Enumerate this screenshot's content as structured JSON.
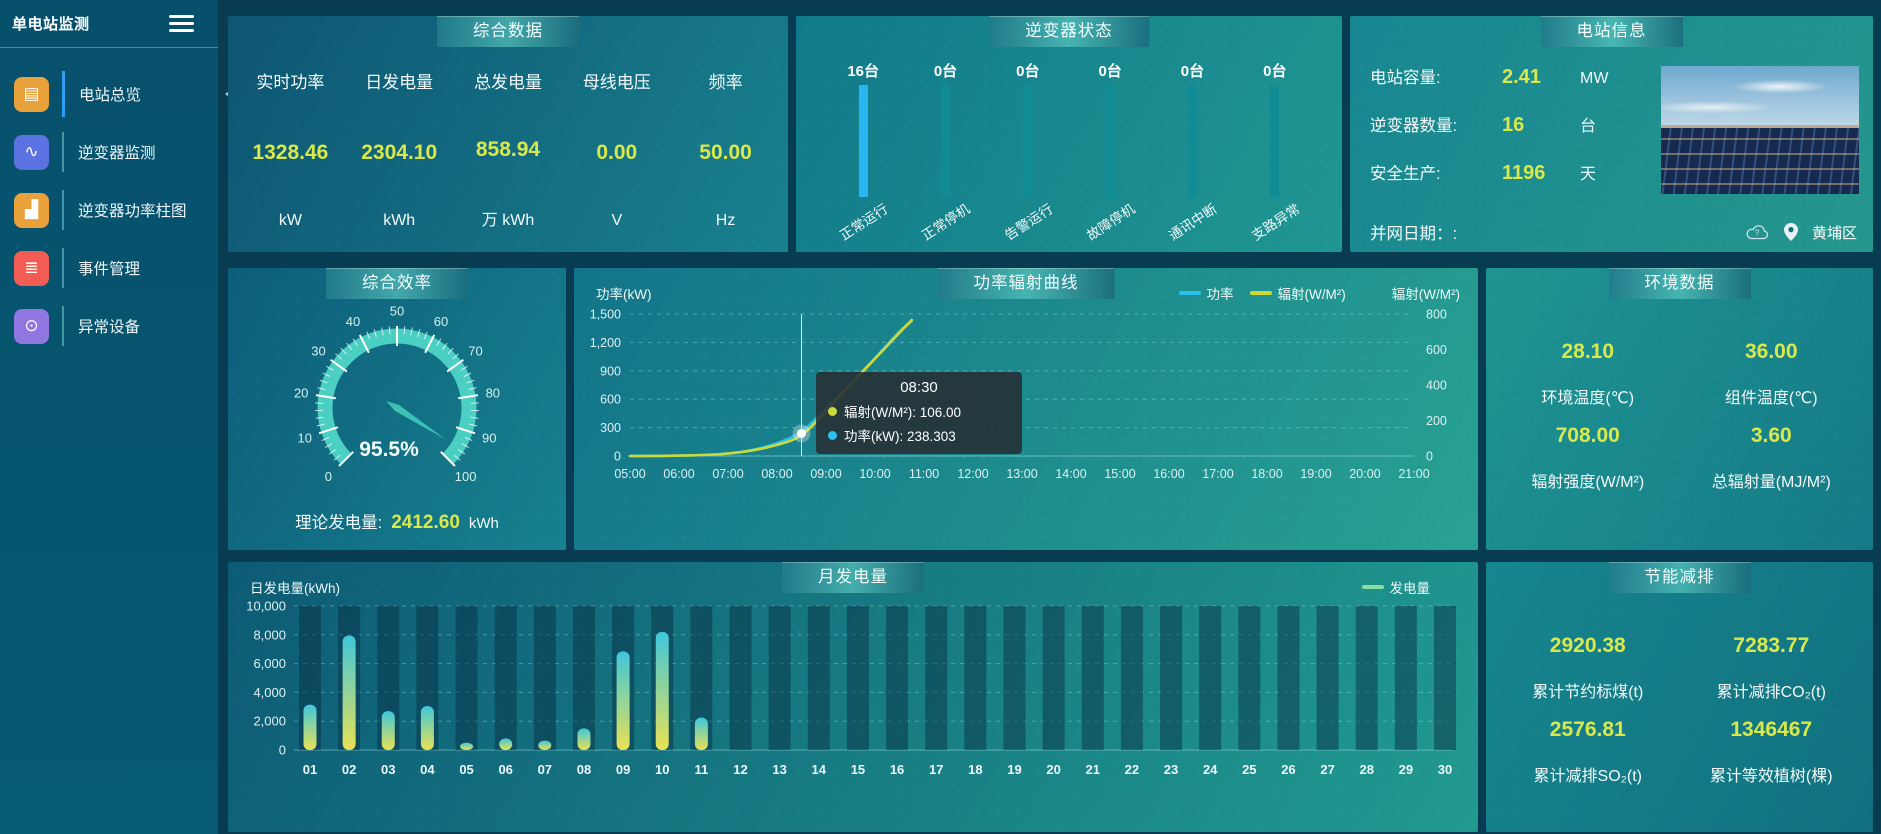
{
  "app": {
    "title": "单电站监测"
  },
  "sidebar": {
    "items": [
      {
        "label": "电站总览",
        "glyph": "▤",
        "color": "#e9a23b",
        "active": true
      },
      {
        "label": "逆变器监测",
        "glyph": "∿",
        "color": "#5a73e0",
        "active": false
      },
      {
        "label": "逆变器功率柱图",
        "glyph": "▟",
        "color": "#e9a23b",
        "active": false
      },
      {
        "label": "事件管理",
        "glyph": "≣",
        "color": "#f25c54",
        "active": false
      },
      {
        "label": "异常设备",
        "glyph": "⊙",
        "color": "#8f76e0",
        "active": false
      }
    ]
  },
  "panels": {
    "summary": {
      "title": "综合数据",
      "metrics": [
        {
          "label": "实时功率",
          "value": "1328.46",
          "unit": "kW"
        },
        {
          "label": "日发电量",
          "value": "2304.10",
          "unit": "kWh"
        },
        {
          "label": "总发电量",
          "value": "858.94",
          "unit": "万 kWh"
        },
        {
          "label": "母线电压",
          "value": "0.00",
          "unit": "V"
        },
        {
          "label": "频率",
          "value": "50.00",
          "unit": "Hz"
        }
      ]
    },
    "inverter_status": {
      "title": "逆变器状态",
      "bars": [
        {
          "count": "16台",
          "label": "正常运行",
          "color": "#2ab5f2"
        },
        {
          "count": "0台",
          "label": "正常停机",
          "color": "#0f8c94"
        },
        {
          "count": "0台",
          "label": "告警运行",
          "color": "#0f8c94"
        },
        {
          "count": "0台",
          "label": "故障停机",
          "color": "#0f8c94"
        },
        {
          "count": "0台",
          "label": "通讯中断",
          "color": "#0f8c94"
        },
        {
          "count": "0台",
          "label": "支路异常",
          "color": "#0f8c94"
        }
      ]
    },
    "station_info": {
      "title": "电站信息",
      "rows": [
        {
          "label": "电站容量:",
          "value": "2.41",
          "unit": "MW"
        },
        {
          "label": "逆变器数量:",
          "value": "16",
          "unit": "台"
        },
        {
          "label": "安全生产:",
          "value": "1196",
          "unit": "天"
        }
      ],
      "grid_date_label": "并网日期：:",
      "location": "黄埔区"
    },
    "efficiency": {
      "title": "综合效率",
      "theory_label": "理论发电量:",
      "theory_value": "2412.60",
      "theory_unit": "kWh"
    },
    "power_curve": {
      "title": "功率辐射曲线"
    },
    "environment": {
      "title": "环境数据",
      "stats": [
        {
          "value": "28.10",
          "label": "环境温度(℃)"
        },
        {
          "value": "36.00",
          "label": "组件温度(℃)"
        },
        {
          "value": "708.00",
          "label": "辐射强度(W/M²)"
        },
        {
          "value": "3.60",
          "label": "总辐射量(MJ/M²)"
        }
      ]
    },
    "monthly": {
      "title": "月发电量"
    },
    "saving": {
      "title": "节能减排",
      "stats": [
        {
          "value": "2920.38",
          "label": "累计节约标煤(t)"
        },
        {
          "value": "7283.77",
          "label": "累计减排CO₂(t)"
        },
        {
          "value": "2576.81",
          "label": "累计减排SO₂(t)"
        },
        {
          "value": "1346467",
          "label": "累计等效植树(棵)"
        }
      ]
    }
  },
  "chart_data": [
    {
      "id": "power_curve",
      "type": "line",
      "title": "功率辐射曲线",
      "x_range": [
        5,
        21
      ],
      "x_tick_labels": [
        "05:00",
        "06:00",
        "07:00",
        "08:00",
        "09:00",
        "10:00",
        "11:00",
        "12:00",
        "13:00",
        "14:00",
        "15:00",
        "16:00",
        "17:00",
        "18:00",
        "19:00",
        "20:00",
        "21:00"
      ],
      "x_hours": [
        5,
        5.5,
        6,
        6.5,
        7,
        7.5,
        8,
        8.5,
        9,
        9.5,
        10,
        10.5,
        10.75
      ],
      "series": [
        {
          "name": "功率",
          "axis": "left",
          "color": "#29c2ee",
          "values": [
            0,
            1,
            3,
            8,
            25,
            60,
            130,
            238.303,
            500,
            760,
            1030,
            1320,
            1425
          ]
        },
        {
          "name": "辐射(W/M²)",
          "axis": "right",
          "color": "#cdd938",
          "values": [
            0,
            0,
            2,
            5,
            12,
            30,
            60,
            106,
            250,
            405,
            548,
            695,
            766
          ]
        }
      ],
      "left_axis": {
        "name": "功率(kW)",
        "max": 1500,
        "ticks": [
          "0",
          "300",
          "600",
          "900",
          "1,200",
          "1,500"
        ]
      },
      "right_axis": {
        "name": "辐射(W/M²)",
        "max": 800,
        "ticks": [
          "0",
          "200",
          "400",
          "600",
          "800"
        ]
      },
      "crosshair": {
        "x": 8.5,
        "value": 238.303
      },
      "tooltip": {
        "time": "08:30",
        "rows": [
          {
            "color": "#cdd938",
            "text": "辐射(W/M²): 106.00"
          },
          {
            "color": "#29c2ee",
            "text": "功率(kW): 238.303"
          }
        ]
      },
      "legend_position": "top-right",
      "grid": true
    },
    {
      "id": "monthly_generation",
      "type": "bar",
      "title": "月发电量",
      "ylabel": "日发电量(kWh)",
      "legend": "发电量",
      "legend_color": "#8ade9e",
      "categories": [
        "01",
        "02",
        "03",
        "04",
        "05",
        "06",
        "07",
        "08",
        "09",
        "10",
        "11",
        "12",
        "13",
        "14",
        "15",
        "16",
        "17",
        "18",
        "19",
        "20",
        "21",
        "22",
        "23",
        "24",
        "25",
        "26",
        "27",
        "28",
        "29",
        "30"
      ],
      "values": [
        3150,
        7950,
        2700,
        3050,
        500,
        800,
        650,
        1500,
        6850,
        8200,
        2250,
        0,
        0,
        0,
        0,
        0,
        0,
        0,
        0,
        0,
        0,
        0,
        0,
        0,
        0,
        0,
        0,
        0,
        0,
        0
      ],
      "ymax": 10000,
      "y_ticks": [
        "0",
        "2,000",
        "4,000",
        "6,000",
        "8,000",
        "10,000"
      ],
      "bar_gradient": [
        "#3fc6da",
        "#e9e254"
      ],
      "grid": true
    },
    {
      "id": "efficiency_gauge",
      "type": "gauge",
      "value": 95.5,
      "display": "95.5%",
      "min": 0,
      "max": 100,
      "tick_labels": [
        "0",
        "10",
        "20",
        "30",
        "40",
        "50",
        "60",
        "70",
        "80",
        "90",
        "100"
      ],
      "band_color": "#4bcfc2",
      "needle_color": "#3cc0b4"
    }
  ]
}
